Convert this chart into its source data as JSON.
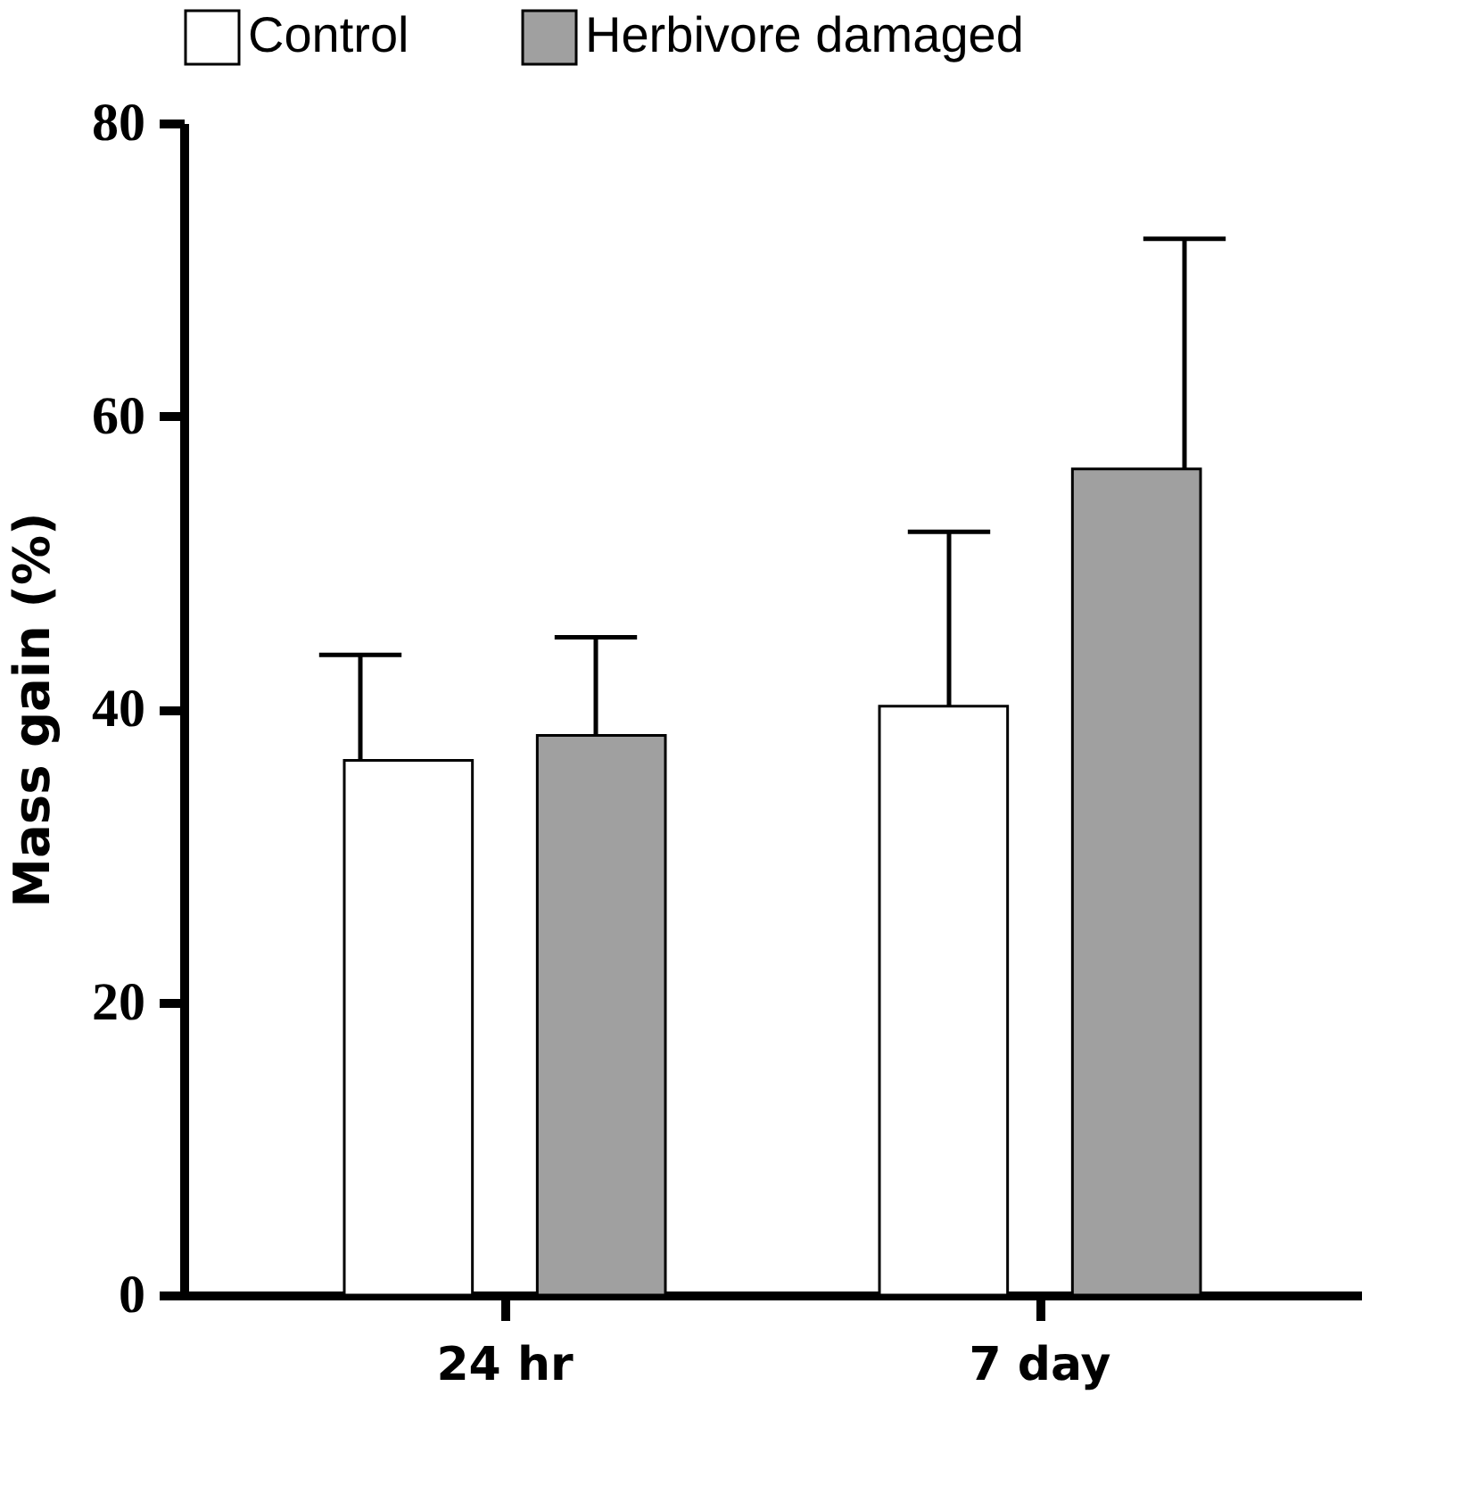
{
  "chart_data": {
    "type": "bar",
    "ylabel": "Mass gain (%)",
    "categories": [
      "24 hr",
      "7 day"
    ],
    "series": [
      {
        "name": "Control",
        "color": "#ffffff",
        "values": [
          36.5,
          40.2
        ],
        "errors": [
          [
            36.5,
            43.7
          ],
          [
            40.2,
            52.1
          ]
        ]
      },
      {
        "name": "Herbivore damaged",
        "color": "#a0a0a0",
        "values": [
          38.2,
          56.4
        ],
        "errors": [
          [
            38.2,
            44.9
          ],
          [
            56.4,
            72.1
          ]
        ]
      }
    ],
    "ylim": [
      0,
      80
    ],
    "yticks": [
      0,
      20,
      40,
      60,
      80
    ],
    "legend": "top",
    "grid": false
  }
}
